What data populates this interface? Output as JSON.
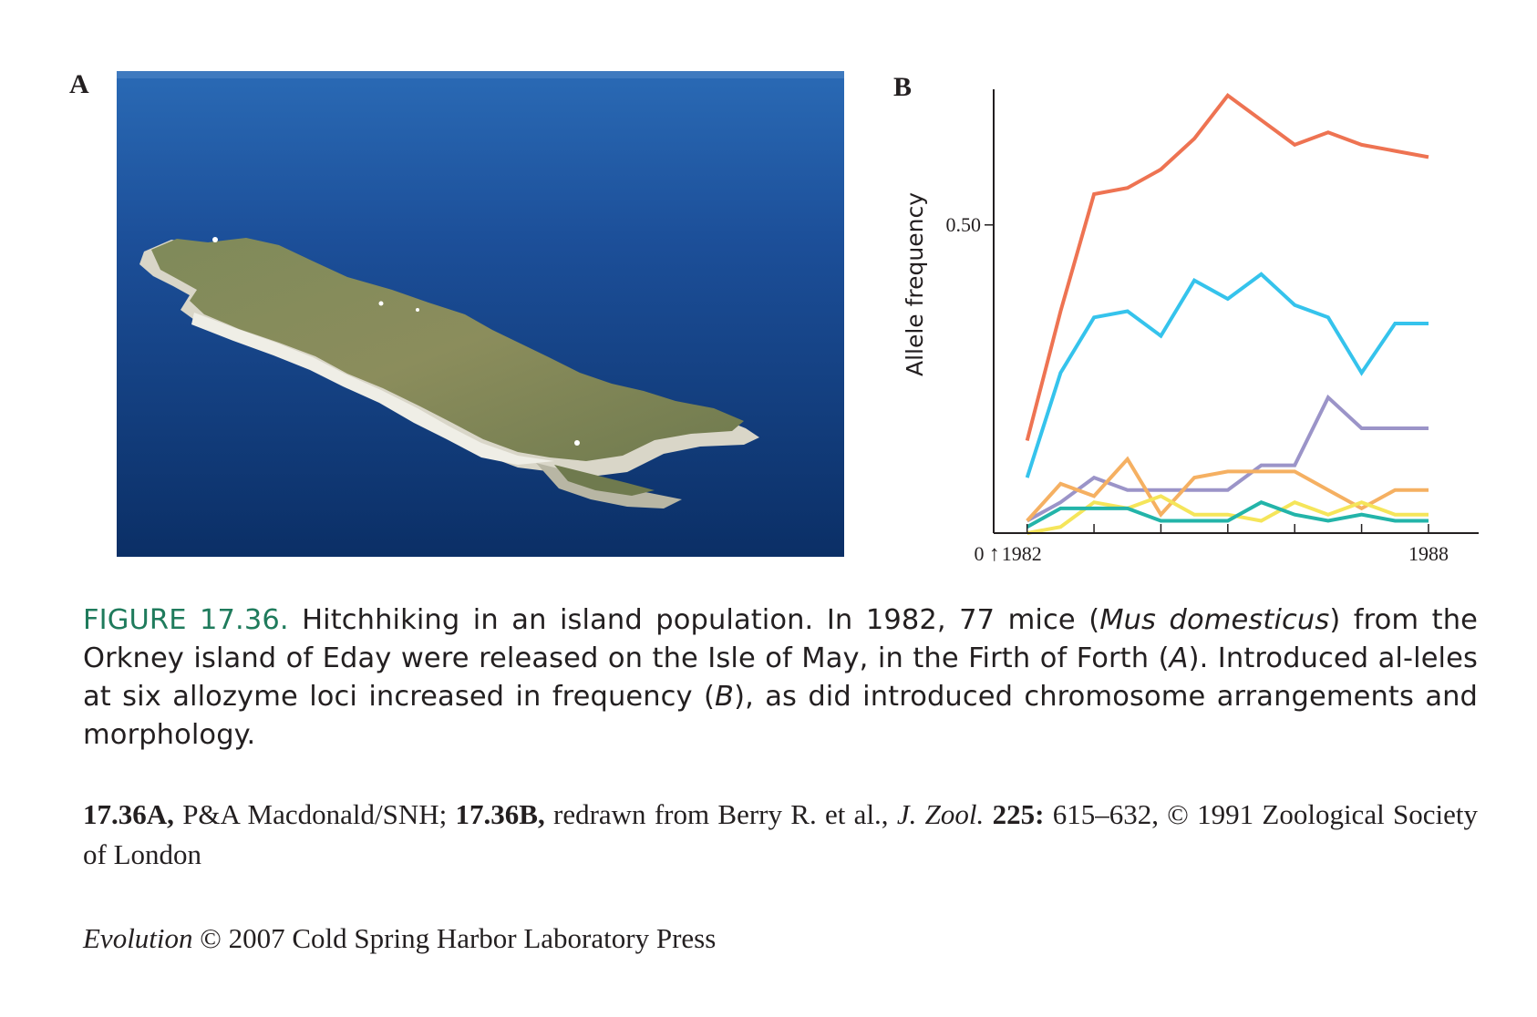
{
  "panel_a": {
    "label": "A"
  },
  "panel_b": {
    "label": "B"
  },
  "chart_data": {
    "type": "line",
    "ylabel": "Allele frequency",
    "xlabel": "",
    "ytick_labels": [
      "0",
      "0.50"
    ],
    "xtick_labels": [
      "1982",
      "1988"
    ],
    "release_marker": "↑",
    "x": [
      1982.0,
      1982.5,
      1983.0,
      1983.5,
      1984.0,
      1984.5,
      1985.0,
      1985.5,
      1986.0,
      1986.5,
      1987.0,
      1987.5,
      1988.0
    ],
    "xlim": [
      1981.5,
      1988.75
    ],
    "ylim": [
      0,
      0.72
    ],
    "series": [
      {
        "color": "#ee7352",
        "values": [
          0.15,
          0.36,
          0.55,
          0.56,
          0.59,
          0.64,
          0.71,
          0.67,
          0.63,
          0.65,
          0.63,
          0.62,
          0.61
        ]
      },
      {
        "color": "#35c3ec",
        "values": [
          0.09,
          0.26,
          0.35,
          0.36,
          0.32,
          0.41,
          0.38,
          0.42,
          0.37,
          0.35,
          0.26,
          0.34,
          0.34
        ]
      },
      {
        "color": "#9b94c8",
        "values": [
          0.02,
          0.05,
          0.09,
          0.07,
          0.07,
          0.07,
          0.07,
          0.11,
          0.11,
          0.22,
          0.17,
          0.17,
          0.17
        ]
      },
      {
        "color": "#f5b062",
        "values": [
          0.02,
          0.08,
          0.06,
          0.12,
          0.03,
          0.09,
          0.1,
          0.1,
          0.1,
          0.07,
          0.04,
          0.07,
          0.07
        ]
      },
      {
        "color": "#f5e55a",
        "values": [
          0.0,
          0.01,
          0.05,
          0.04,
          0.06,
          0.03,
          0.03,
          0.02,
          0.05,
          0.03,
          0.05,
          0.03,
          0.03
        ]
      },
      {
        "color": "#23b4a9",
        "values": [
          0.01,
          0.04,
          0.04,
          0.04,
          0.02,
          0.02,
          0.02,
          0.05,
          0.03,
          0.02,
          0.03,
          0.02,
          0.02
        ]
      }
    ]
  },
  "caption": {
    "figure_number": "FIGURE 17.36.",
    "text_1": " Hitchhiking in an island population. In 1982, 77 mice (",
    "species": "Mus domesticus",
    "text_2": ") from the Orkney island of Eday were released on the Isle of May, in the Firth of Forth (",
    "ref_a": "A",
    "text_3": "). Introduced al-leles at six allozyme loci increased in frequency (",
    "ref_b": "B",
    "text_4": "), as did introduced chromosome arrangements and morphology."
  },
  "credits": {
    "a_ref": "17.36A,",
    "a_text": " P&A Macdonald/SNH; ",
    "b_ref": "17.36B,",
    "b_text": " redrawn from Berry R. et al., ",
    "journal": "J. Zool.",
    "volume": " 225:",
    "rest": " 615–632, © 1991 Zoological Society of London"
  },
  "publisher": {
    "book": "Evolution",
    "text": " © 2007 Cold Spring Harbor Laboratory Press"
  },
  "colors": {
    "figure_number": "#1f7b5c",
    "sea": "#123a78"
  }
}
